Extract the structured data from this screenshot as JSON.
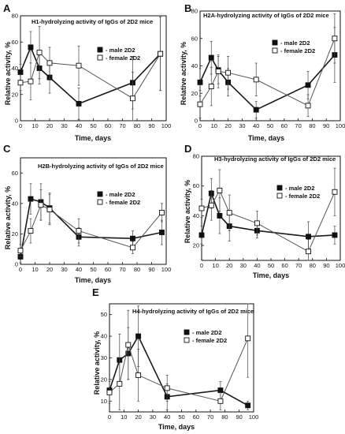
{
  "figure": {
    "panels": [
      {
        "letter": "A",
        "ylabel": "Relative activity, %",
        "xlabel": "Time, days"
      },
      {
        "letter": "B",
        "ylabel": "Relative activity, %",
        "xlabel": "Time, days"
      },
      {
        "letter": "C",
        "ylabel": "Relative activity, %",
        "xlabel": "Time, days"
      },
      {
        "letter": "D",
        "ylabel": "Relative activity, %",
        "xlabel": "Time, days"
      },
      {
        "letter": "E",
        "ylabel": "Relative activity, %",
        "xlabel": "Time, days"
      }
    ]
  },
  "colors": {
    "male": "#1a1a1a",
    "female": "#555555",
    "error_bar": "#444444"
  },
  "chart_data": [
    {
      "type": "line",
      "title": "H1-hydrolyzing  activity of IgGs of 2D2 mice",
      "xlabel": "Time, days",
      "ylabel": "Relative activity, %",
      "xlim": [
        0,
        100
      ],
      "ylim": [
        0,
        80
      ],
      "xticks": [
        0,
        10,
        20,
        30,
        40,
        50,
        60,
        70,
        80,
        90,
        100
      ],
      "yticks": [
        0,
        20,
        40,
        60,
        80
      ],
      "legend_position": "top-right",
      "series": [
        {
          "name": "- male 2D2",
          "marker": "filled-square",
          "points": [
            {
              "x": 0,
              "y": 37
            },
            {
              "x": 7,
              "y": 56
            },
            {
              "x": 13,
              "y": 40
            },
            {
              "x": 20,
              "y": 33
            },
            {
              "x": 40,
              "y": 13
            },
            {
              "x": 77,
              "y": 29
            },
            {
              "x": 96,
              "y": 51
            }
          ],
          "err": [
            6,
            12,
            12,
            12,
            12,
            20,
            28
          ]
        },
        {
          "name": "- female 2D2",
          "marker": "open-square",
          "points": [
            {
              "x": 0,
              "y": 29
            },
            {
              "x": 7,
              "y": 30
            },
            {
              "x": 13,
              "y": 52
            },
            {
              "x": 20,
              "y": 44
            },
            {
              "x": 40,
              "y": 42
            },
            {
              "x": 77,
              "y": 17
            },
            {
              "x": 96,
              "y": 51
            }
          ],
          "err": [
            6,
            14,
            20,
            12,
            15,
            20,
            28
          ]
        }
      ]
    },
    {
      "type": "line",
      "title": "H2A-hydrolyzing  activity of IgGs of 2D2 mice",
      "xlabel": "Time, days",
      "ylabel": "Relative activity, %",
      "xlim": [
        0,
        100
      ],
      "ylim": [
        0,
        80
      ],
      "xticks": [
        0,
        10,
        20,
        30,
        40,
        50,
        60,
        70,
        80,
        90,
        100
      ],
      "yticks": [
        0,
        20,
        40,
        60,
        80
      ],
      "legend_position": "top-right",
      "series": [
        {
          "name": "- male 2D2",
          "marker": "filled-square",
          "points": [
            {
              "x": 0,
              "y": 28
            },
            {
              "x": 8,
              "y": 46
            },
            {
              "x": 13,
              "y": 37
            },
            {
              "x": 20,
              "y": 28
            },
            {
              "x": 40,
              "y": 8
            },
            {
              "x": 77,
              "y": 26
            },
            {
              "x": 96,
              "y": 48
            }
          ],
          "err": [
            10,
            12,
            10,
            10,
            6,
            10,
            20
          ]
        },
        {
          "name": "- female 2D2",
          "marker": "open-square",
          "points": [
            {
              "x": 0,
              "y": 12
            },
            {
              "x": 8,
              "y": 25
            },
            {
              "x": 13,
              "y": 36
            },
            {
              "x": 20,
              "y": 35
            },
            {
              "x": 40,
              "y": 30
            },
            {
              "x": 77,
              "y": 11
            },
            {
              "x": 96,
              "y": 60
            }
          ],
          "err": [
            10,
            14,
            12,
            12,
            12,
            8,
            18
          ]
        }
      ]
    },
    {
      "type": "line",
      "title": "H2B-hydrolyzing  activity of IgGs of 2D2 mice",
      "xlabel": "Time, days",
      "ylabel": "Relative activity, %",
      "xlim": [
        0,
        100
      ],
      "ylim": [
        0,
        70
      ],
      "xticks": [
        0,
        10,
        20,
        30,
        40,
        50,
        60,
        70,
        80,
        90,
        100
      ],
      "yticks": [
        0,
        20,
        40,
        60
      ],
      "legend_position": "top-right",
      "series": [
        {
          "name": "- male 2D2",
          "marker": "filled-square",
          "points": [
            {
              "x": 0,
              "y": 5
            },
            {
              "x": 7,
              "y": 43
            },
            {
              "x": 14,
              "y": 41
            },
            {
              "x": 20,
              "y": 37
            },
            {
              "x": 40,
              "y": 18
            },
            {
              "x": 77,
              "y": 17
            },
            {
              "x": 97,
              "y": 21
            }
          ],
          "err": [
            4,
            10,
            12,
            10,
            6,
            5,
            8
          ]
        },
        {
          "name": "- female 2D2",
          "marker": "open-square",
          "points": [
            {
              "x": 0,
              "y": 9
            },
            {
              "x": 7,
              "y": 22
            },
            {
              "x": 14,
              "y": 39
            },
            {
              "x": 20,
              "y": 36
            },
            {
              "x": 40,
              "y": 22
            },
            {
              "x": 77,
              "y": 11
            },
            {
              "x": 97,
              "y": 34
            }
          ],
          "err": [
            4,
            8,
            10,
            10,
            8,
            4,
            6
          ]
        }
      ]
    },
    {
      "type": "line",
      "title": "H3-hydrolyzing  activity of IgGs of 2D2 mice",
      "xlabel": "Time, days",
      "ylabel": "Relative activity, %",
      "xlim": [
        0,
        100
      ],
      "ylim": [
        10,
        80
      ],
      "xticks": [
        0,
        10,
        20,
        30,
        40,
        50,
        60,
        70,
        80,
        90,
        100
      ],
      "yticks": [
        20,
        40,
        60,
        80
      ],
      "legend_position": "top-right",
      "series": [
        {
          "name": "- male 2D2",
          "marker": "filled-square",
          "points": [
            {
              "x": 0,
              "y": 27
            },
            {
              "x": 7,
              "y": 55
            },
            {
              "x": 13,
              "y": 40
            },
            {
              "x": 20,
              "y": 33
            },
            {
              "x": 40,
              "y": 30
            },
            {
              "x": 77,
              "y": 26
            },
            {
              "x": 96,
              "y": 27
            }
          ],
          "err": [
            6,
            10,
            12,
            10,
            5,
            10,
            6
          ]
        },
        {
          "name": "- female 2D2",
          "marker": "open-square",
          "points": [
            {
              "x": 0,
              "y": 45
            },
            {
              "x": 7,
              "y": 47
            },
            {
              "x": 13,
              "y": 57
            },
            {
              "x": 20,
              "y": 42
            },
            {
              "x": 40,
              "y": 35
            },
            {
              "x": 77,
              "y": 16
            },
            {
              "x": 96,
              "y": 56
            }
          ],
          "err": [
            6,
            10,
            14,
            12,
            8,
            8,
            16
          ]
        }
      ]
    },
    {
      "type": "line",
      "title": "H4-hydrolyzing  activity of IgGs of 2D2 mice",
      "xlabel": "Time, days",
      "ylabel": "Relative activity, %",
      "xlim": [
        0,
        100
      ],
      "ylim": [
        5,
        55
      ],
      "xticks": [
        0,
        10,
        20,
        30,
        40,
        50,
        60,
        70,
        80,
        90,
        100
      ],
      "yticks": [
        10,
        20,
        30,
        40,
        50
      ],
      "legend_position": "top-right",
      "series": [
        {
          "name": "- male 2D2",
          "marker": "filled-square",
          "points": [
            {
              "x": 0,
              "y": 15
            },
            {
              "x": 7,
              "y": 29
            },
            {
              "x": 13,
              "y": 32
            },
            {
              "x": 20,
              "y": 40
            },
            {
              "x": 40,
              "y": 12
            },
            {
              "x": 77,
              "y": 15
            },
            {
              "x": 96,
              "y": 8
            }
          ],
          "err": [
            5,
            12,
            12,
            14,
            6,
            4,
            2
          ]
        },
        {
          "name": "- female 2D2",
          "marker": "open-square",
          "points": [
            {
              "x": 0,
              "y": 14
            },
            {
              "x": 7,
              "y": 18
            },
            {
              "x": 13,
              "y": 36
            },
            {
              "x": 20,
              "y": 22
            },
            {
              "x": 40,
              "y": 16
            },
            {
              "x": 77,
              "y": 10
            },
            {
              "x": 96,
              "y": 39
            }
          ],
          "err": [
            5,
            12,
            16,
            12,
            6,
            4,
            18
          ]
        }
      ]
    }
  ]
}
